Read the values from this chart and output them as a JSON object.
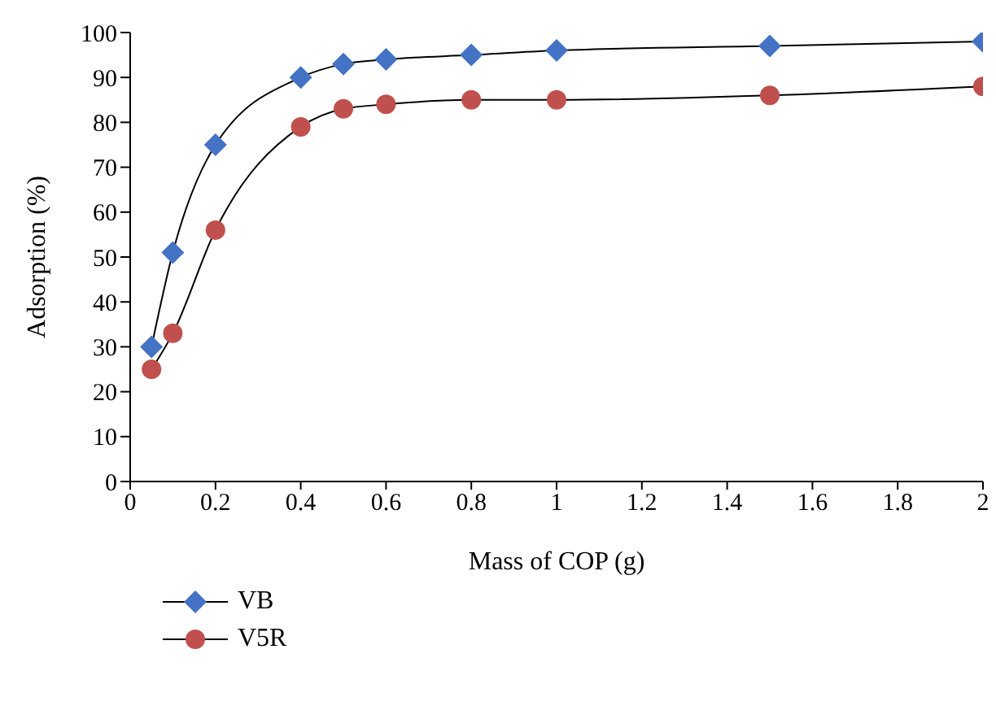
{
  "chart_data": {
    "type": "line",
    "xlabel": "Mass of COP (g)",
    "ylabel": "Adsorption (%)",
    "x": [
      0.05,
      0.1,
      0.2,
      0.4,
      0.5,
      0.6,
      0.8,
      1,
      1.5,
      2
    ],
    "series": [
      {
        "name": "VB",
        "color": "#4472c4",
        "marker": "diamond",
        "values": [
          30,
          51,
          75,
          90,
          93,
          94,
          95,
          96,
          97,
          98
        ]
      },
      {
        "name": "V5R",
        "color": "#c0504d",
        "marker": "circle",
        "values": [
          25,
          33,
          56,
          79,
          83,
          84,
          85,
          85,
          86,
          88
        ]
      }
    ],
    "xlim": [
      0,
      2
    ],
    "xticks": [
      0,
      0.2,
      0.4,
      0.6,
      0.8,
      1,
      1.2,
      1.4,
      1.6,
      1.8,
      2
    ],
    "ylim": [
      0,
      100
    ],
    "yticks": [
      0,
      10,
      20,
      30,
      40,
      50,
      60,
      70,
      80,
      90,
      100
    ],
    "grid": false,
    "legend": "bottom left",
    "line_style": "solid"
  }
}
